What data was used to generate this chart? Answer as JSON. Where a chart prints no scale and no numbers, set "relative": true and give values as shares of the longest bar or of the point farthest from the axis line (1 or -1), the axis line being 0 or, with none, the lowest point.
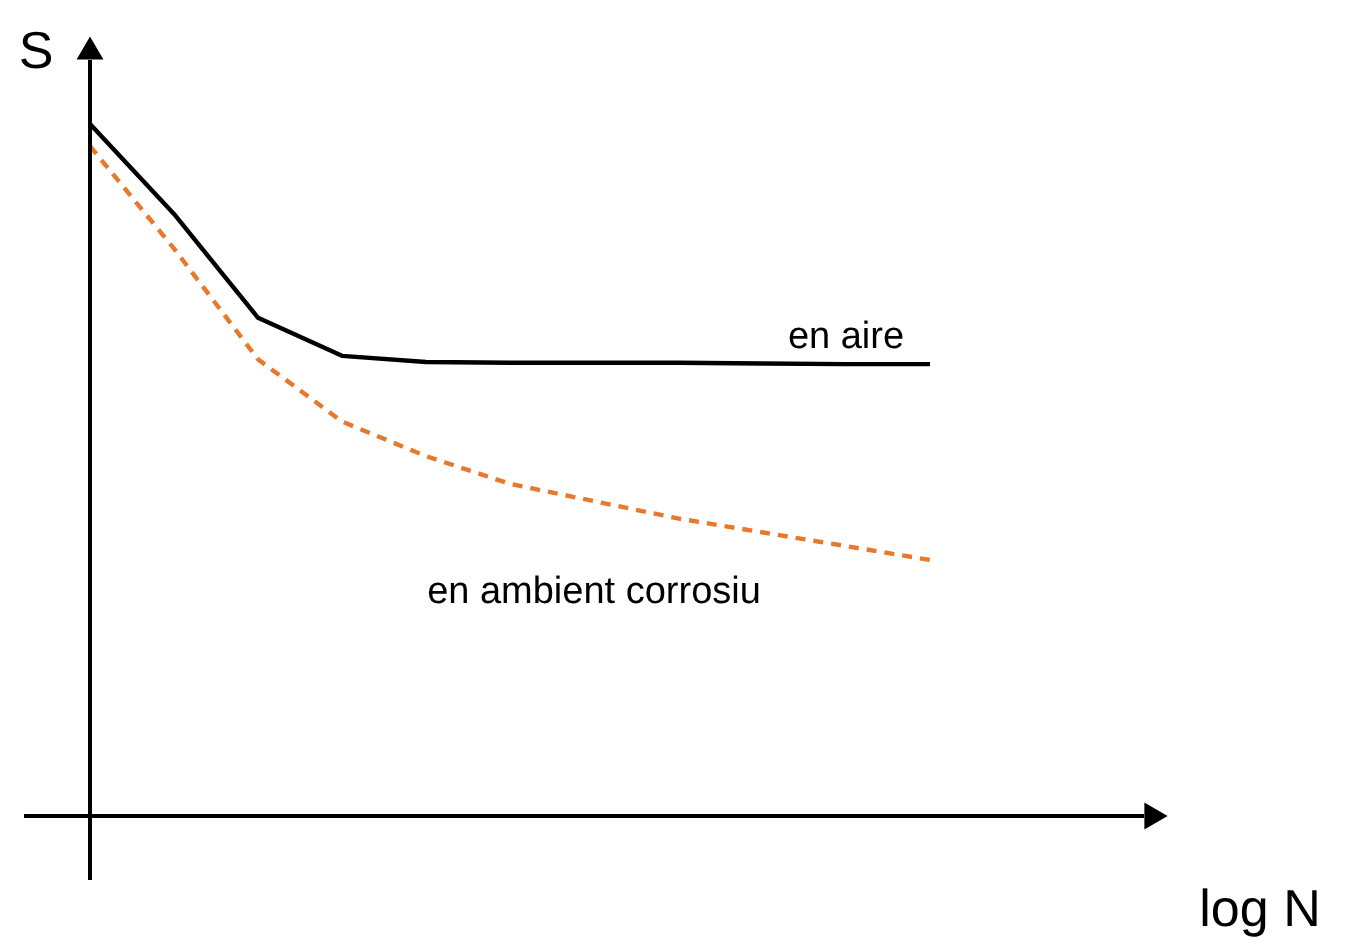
{
  "chart_data": {
    "type": "line",
    "relative": true,
    "xlabel": "log N",
    "ylabel": "S",
    "categories": [
      null,
      null,
      null,
      null,
      null,
      null,
      null,
      null,
      null,
      null,
      null
    ],
    "series": [
      {
        "name": "en aire",
        "color": "#000000",
        "line_style": "solid",
        "values": [
          1.0,
          0.87,
          0.72,
          0.665,
          0.656,
          0.655,
          0.655,
          0.655,
          0.654,
          0.653,
          0.653
        ]
      },
      {
        "name": "en ambient corrosiu",
        "color": "#e8782a",
        "line_style": "dashed",
        "values": [
          0.968,
          0.82,
          0.66,
          0.57,
          0.52,
          0.48,
          0.455,
          0.43,
          0.41,
          0.39,
          0.37
        ]
      }
    ]
  }
}
